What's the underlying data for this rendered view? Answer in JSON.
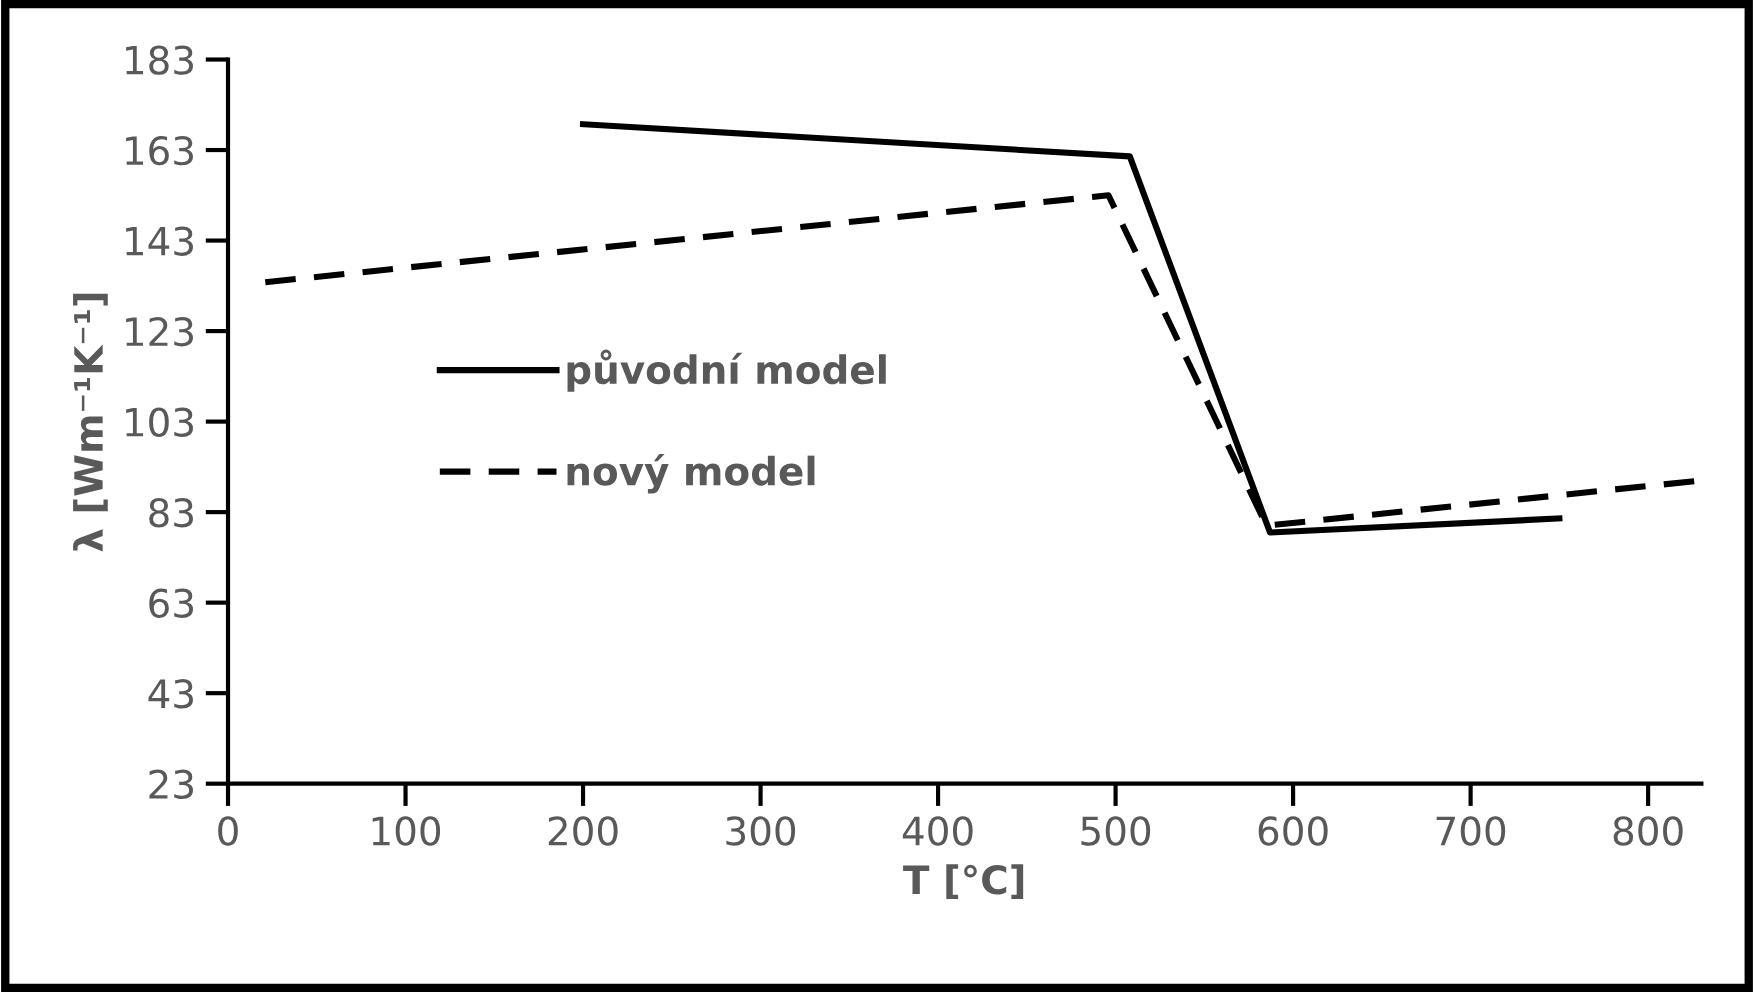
{
  "chart_data": {
    "type": "line",
    "xlabel": "T [°C]",
    "ylabel": "λ [Wm⁻¹K⁻¹]",
    "xlim": [
      0,
      830
    ],
    "xticks": [
      0,
      100,
      200,
      300,
      400,
      500,
      600,
      700,
      800
    ],
    "ylim": [
      23,
      183
    ],
    "yticks": [
      23,
      43,
      63,
      83,
      103,
      123,
      143,
      163,
      183
    ],
    "grid": false,
    "legend": "left",
    "marker": "none",
    "series": [
      {
        "name": "původní model",
        "color": "#000000",
        "line_style": "solid",
        "x": [
          200,
          508,
          587,
          750
        ],
        "values": [
          168.7,
          161.6,
          78.5,
          81.6
        ]
      },
      {
        "name": "nový model",
        "color": "#000000",
        "line_style": "dashed",
        "x": [
          21,
          496,
          585,
          830
        ],
        "values": [
          133.8,
          153,
          80,
          90
        ]
      }
    ]
  }
}
